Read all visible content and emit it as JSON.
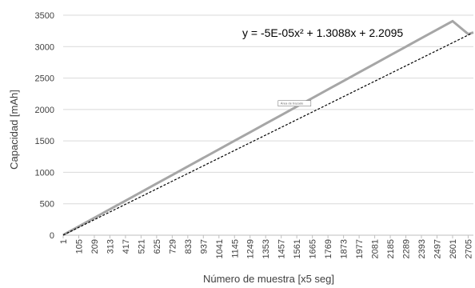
{
  "chart_data": {
    "type": "line",
    "title": "",
    "xlabel": "Número de muestra [x5 seg]",
    "ylabel": "Capacidad [mAh]",
    "ylim": [
      0,
      3500
    ],
    "yticks": [
      0,
      500,
      1000,
      1500,
      2000,
      2500,
      3000,
      3500
    ],
    "xlim": [
      1,
      2740
    ],
    "x_tick_labels": [
      "1",
      "105",
      "209",
      "313",
      "417",
      "521",
      "625",
      "729",
      "833",
      "937",
      "1041",
      "1145",
      "1249",
      "1353",
      "1457",
      "1561",
      "1665",
      "1769",
      "1873",
      "1977",
      "2081",
      "2185",
      "2289",
      "2393",
      "2497",
      "2601",
      "2705"
    ],
    "grid": {
      "horizontal": true,
      "vertical": false
    },
    "series": [
      {
        "x": [
          1,
          105,
          209,
          313,
          417,
          521,
          625,
          729,
          833,
          937,
          1041,
          1145,
          1249,
          1353,
          1457,
          1561,
          1665,
          1769,
          1873,
          1977,
          2081,
          2185,
          2289,
          2393,
          2497,
          2601,
          2705,
          2740
        ],
        "y": [
          3.5,
          139.9,
          276.2,
          412.5,
          548.8,
          685.0,
          821.3,
          957.5,
          1093.7,
          1229.9,
          1366.0,
          1502.2,
          1638.3,
          1774.4,
          1910.5,
          2046.6,
          2182.6,
          2318.7,
          2454.7,
          2590.7,
          2726.6,
          2862.6,
          2998.5,
          3134.4,
          3270.2,
          3406.1,
          3200.0,
          3225.0
        ]
      }
    ],
    "trendline": {
      "type": "polynomial",
      "order": 2,
      "equation": "y = -5E-05x² + 1.3088x + 2.2095",
      "color": "#000000"
    },
    "annotation_box": {
      "label": "Área de trazado",
      "x": 1655,
      "y": 2040
    },
    "colors": {
      "series": "#a6a6a6",
      "trendline": "#000000",
      "grid": "#d9d9d9",
      "axis": "#bfbfbf",
      "text": "#404040"
    }
  }
}
